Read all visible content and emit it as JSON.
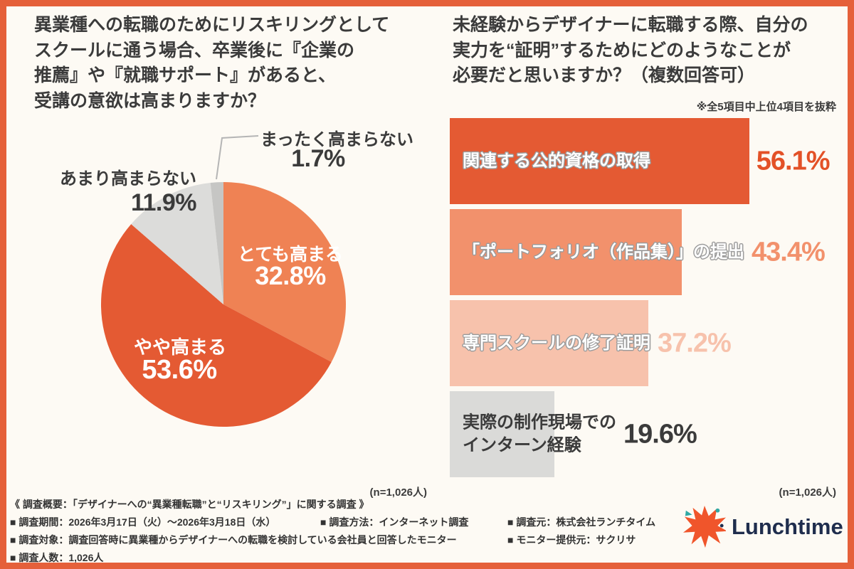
{
  "page": {
    "background": "#fdfaf4",
    "frame_color": "#e5603a",
    "text_color": "#3b3b3b"
  },
  "chart_data": [
    {
      "type": "pie",
      "title": "異業種への転職のためにリスキリングとして\nスクールに通う場合、卒業後に『企業の\n推薦』や『就職サポート』があると、\n受講の意欲は高まりますか？",
      "labels": [
        "とても高まる",
        "やや高まる",
        "あまり高まらない",
        "まったく高まらない"
      ],
      "values": [
        32.8,
        53.6,
        11.9,
        1.7
      ],
      "value_labels": [
        "32.8%",
        "53.6%",
        "11.9%",
        "1.7%"
      ],
      "colors": [
        "#ef8254",
        "#e45a33",
        "#dcdcda",
        "#c6c6c4"
      ],
      "start_angle_deg": 0,
      "direction": "clockwise",
      "legend_position": "none",
      "n_label": "(n=1,026人)"
    },
    {
      "type": "bar",
      "orientation": "horizontal",
      "title": "未経験からデザイナーに転職する際、自分の\n実力を“証明”するためにどのようなことが\n必要だと思いますか？（複数回答可）",
      "note": "※全5項目中上位4項目を抜粋",
      "categories": [
        "関連する公的資格の取得",
        "「ポートフォリオ（作品集）」の提出",
        "専門スクールの修了証明",
        "実際の制作現場での\nインターン経験"
      ],
      "values": [
        56.1,
        43.4,
        37.2,
        19.6
      ],
      "value_labels": [
        "56.1%",
        "43.4%",
        "37.2%",
        "19.6%"
      ],
      "bar_colors": [
        "#e45a33",
        "#f2916c",
        "#f7c2ac",
        "#dadad8"
      ],
      "label_colors": [
        "#ffffff",
        "#ffffff",
        "#ffffff",
        "#3b3b3b"
      ],
      "value_colors": [
        "#e35127",
        "#f2916c",
        "#f7c2ac",
        "#3b3b3b"
      ],
      "xlim": [
        0,
        60
      ],
      "grid": false,
      "n_label": "(n=1,026人)"
    }
  ],
  "footer": {
    "overview": "《 調査概要：「デザイナーへの“異業種転職”と“リスキリング”」に関する調査 》",
    "period": "■ 調査期間：2026年3月17日（火）〜2026年3月18日（水）",
    "method": "■ 調査方法：インターネット調査",
    "source": "■ 調査元：株式会社ランチタイム",
    "target": "■ 調査対象：調査回答時に異業種からデザイナーへの転職を検討している会社員と回答したモニター",
    "monitor": "■ モニター提供元：サクリサ",
    "count": "■ 調査人数：1,026人"
  },
  "logo": {
    "text": "Lunchtime",
    "colors": {
      "burst": "#f0552b",
      "accent": "#2fa9a5",
      "text": "#1f2d4d"
    }
  }
}
